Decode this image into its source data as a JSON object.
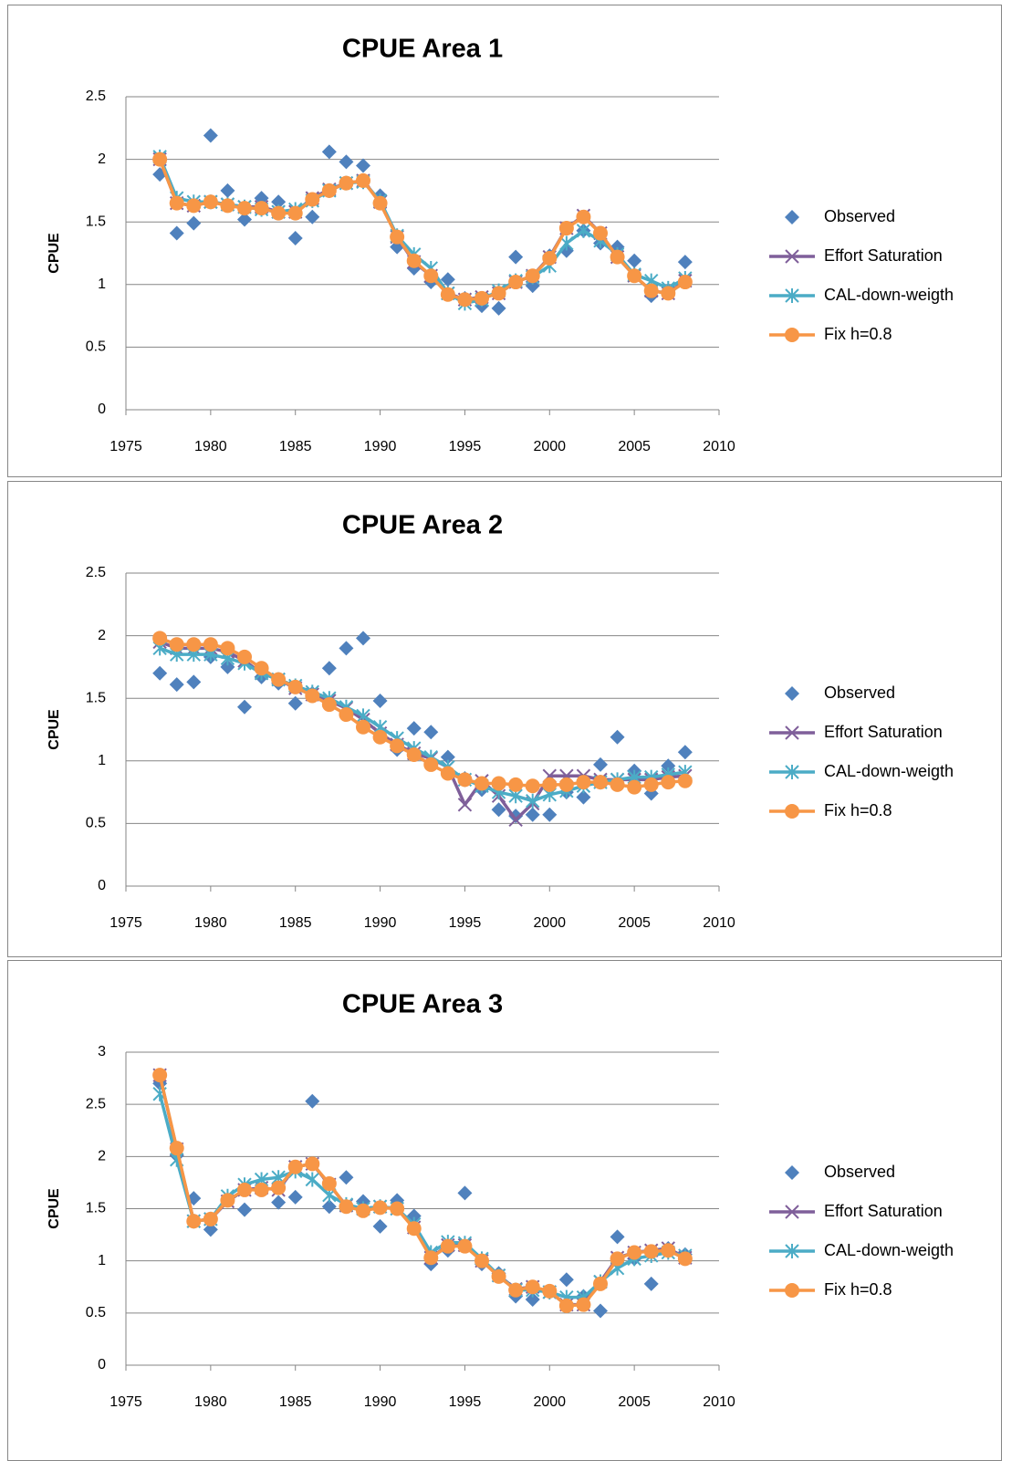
{
  "chart_data": [
    {
      "type": "line",
      "title": "CPUE Area 1",
      "y_label": "CPUE",
      "x": [
        1977,
        1978,
        1979,
        1980,
        1981,
        1982,
        1983,
        1984,
        1985,
        1986,
        1987,
        1988,
        1989,
        1990,
        1991,
        1992,
        1993,
        1994,
        1995,
        1996,
        1997,
        1998,
        1999,
        2000,
        2001,
        2002,
        2003,
        2004,
        2005,
        2006,
        2007,
        2008
      ],
      "xlim": [
        1975,
        2010
      ],
      "xticks": [
        1975,
        1980,
        1985,
        1990,
        1995,
        2000,
        2005,
        2010
      ],
      "ylim": [
        0,
        2.5
      ],
      "yticks": [
        0,
        0.5,
        1,
        1.5,
        2,
        2.5
      ],
      "grid": true,
      "legend": "right",
      "series": [
        {
          "name": "Observed",
          "color": "#4f81bd",
          "marker": "diamond",
          "line": false,
          "values": [
            1.88,
            1.41,
            1.49,
            2.19,
            1.75,
            1.52,
            1.69,
            1.66,
            1.37,
            1.54,
            2.06,
            1.98,
            1.95,
            1.71,
            1.3,
            1.13,
            1.02,
            1.04,
            0.89,
            0.83,
            0.81,
            1.22,
            0.99,
            1.23,
            1.27,
            1.43,
            1.33,
            1.3,
            1.19,
            0.91,
            0.95,
            1.18
          ]
        },
        {
          "name": "Effort Saturation",
          "color": "#7f5f9a",
          "marker": "x",
          "line": true,
          "values": [
            2.0,
            1.65,
            1.63,
            1.66,
            1.64,
            1.62,
            1.62,
            1.58,
            1.58,
            1.69,
            1.76,
            1.81,
            1.83,
            1.66,
            1.38,
            1.18,
            1.07,
            0.93,
            0.88,
            0.9,
            0.93,
            1.02,
            1.07,
            1.22,
            1.45,
            1.55,
            1.41,
            1.22,
            1.07,
            0.95,
            0.93,
            1.03
          ]
        },
        {
          "name": "CAL-down-weigth",
          "color": "#4bacc6",
          "marker": "asterisk",
          "line": true,
          "values": [
            2.02,
            1.69,
            1.66,
            1.66,
            1.64,
            1.62,
            1.6,
            1.58,
            1.6,
            1.67,
            1.75,
            1.81,
            1.82,
            1.67,
            1.39,
            1.24,
            1.13,
            0.93,
            0.85,
            0.88,
            0.95,
            1.03,
            1.06,
            1.15,
            1.33,
            1.43,
            1.35,
            1.24,
            1.08,
            1.03,
            0.97,
            1.05
          ]
        },
        {
          "name": "Fix h=0.8",
          "color": "#f79646",
          "marker": "circle",
          "line": true,
          "values": [
            2.0,
            1.65,
            1.63,
            1.66,
            1.63,
            1.61,
            1.61,
            1.57,
            1.57,
            1.68,
            1.75,
            1.81,
            1.83,
            1.65,
            1.38,
            1.19,
            1.07,
            0.92,
            0.88,
            0.89,
            0.93,
            1.02,
            1.07,
            1.21,
            1.45,
            1.54,
            1.41,
            1.22,
            1.07,
            0.95,
            0.93,
            1.02
          ]
        }
      ]
    },
    {
      "type": "line",
      "title": "CPUE Area 2",
      "y_label": "CPUE",
      "x": [
        1977,
        1978,
        1979,
        1980,
        1981,
        1982,
        1983,
        1984,
        1985,
        1986,
        1987,
        1988,
        1989,
        1990,
        1991,
        1992,
        1993,
        1994,
        1995,
        1996,
        1997,
        1998,
        1999,
        2000,
        2001,
        2002,
        2003,
        2004,
        2005,
        2006,
        2007,
        2008
      ],
      "xlim": [
        1975,
        2010
      ],
      "xticks": [
        1975,
        1980,
        1985,
        1990,
        1995,
        2000,
        2005,
        2010
      ],
      "ylim": [
        0,
        2.5
      ],
      "yticks": [
        0,
        0.5,
        1,
        1.5,
        2,
        2.5
      ],
      "grid": true,
      "legend": "right",
      "series": [
        {
          "name": "Observed",
          "color": "#4f81bd",
          "marker": "diamond",
          "line": false,
          "values": [
            1.7,
            1.61,
            1.63,
            1.83,
            1.75,
            1.43,
            1.67,
            1.62,
            1.46,
            1.54,
            1.74,
            1.9,
            1.98,
            1.48,
            1.09,
            1.26,
            1.23,
            1.03,
            0.86,
            0.77,
            0.61,
            0.56,
            0.57,
            0.57,
            0.75,
            0.71,
            0.97,
            1.19,
            0.92,
            0.74,
            0.96,
            1.07
          ]
        },
        {
          "name": "Effort Saturation",
          "color": "#7f5f9a",
          "marker": "x",
          "line": true,
          "values": [
            1.95,
            1.9,
            1.9,
            1.9,
            1.87,
            1.8,
            1.7,
            1.65,
            1.58,
            1.53,
            1.48,
            1.42,
            1.33,
            1.22,
            1.13,
            1.06,
            1.02,
            0.95,
            0.65,
            0.84,
            0.72,
            0.53,
            0.66,
            0.88,
            0.88,
            0.88,
            0.85,
            0.85,
            0.85,
            0.85,
            0.87,
            0.88
          ]
        },
        {
          "name": "CAL-down-weigth",
          "color": "#4bacc6",
          "marker": "asterisk",
          "line": true,
          "values": [
            1.9,
            1.85,
            1.85,
            1.85,
            1.82,
            1.78,
            1.7,
            1.65,
            1.6,
            1.55,
            1.5,
            1.43,
            1.36,
            1.27,
            1.18,
            1.1,
            1.03,
            0.95,
            0.85,
            0.8,
            0.75,
            0.72,
            0.68,
            0.73,
            0.76,
            0.8,
            0.83,
            0.85,
            0.87,
            0.87,
            0.89,
            0.91
          ]
        },
        {
          "name": "Fix h=0.8",
          "color": "#f79646",
          "marker": "circle",
          "line": true,
          "values": [
            1.98,
            1.93,
            1.93,
            1.93,
            1.9,
            1.83,
            1.74,
            1.65,
            1.59,
            1.52,
            1.45,
            1.37,
            1.27,
            1.19,
            1.12,
            1.05,
            0.97,
            0.9,
            0.85,
            0.82,
            0.82,
            0.81,
            0.8,
            0.81,
            0.81,
            0.83,
            0.83,
            0.81,
            0.79,
            0.81,
            0.83,
            0.84
          ]
        }
      ]
    },
    {
      "type": "line",
      "title": "CPUE Area 3",
      "y_label": "CPUE",
      "x": [
        1977,
        1978,
        1979,
        1980,
        1981,
        1982,
        1983,
        1984,
        1985,
        1986,
        1987,
        1988,
        1989,
        1990,
        1991,
        1992,
        1993,
        1994,
        1995,
        1996,
        1997,
        1998,
        1999,
        2000,
        2001,
        2002,
        2003,
        2004,
        2005,
        2006,
        2007,
        2008
      ],
      "xlim": [
        1975,
        2010
      ],
      "xticks": [
        1975,
        1980,
        1985,
        1990,
        1995,
        2000,
        2005,
        2010
      ],
      "ylim": [
        0,
        3
      ],
      "yticks": [
        0,
        0.5,
        1,
        1.5,
        2,
        2.5,
        3
      ],
      "grid": true,
      "legend": "right",
      "series": [
        {
          "name": "Observed",
          "color": "#4f81bd",
          "marker": "diamond",
          "line": false,
          "values": [
            2.7,
            2.01,
            1.6,
            1.3,
            1.59,
            1.49,
            1.68,
            1.56,
            1.61,
            2.53,
            1.52,
            1.8,
            1.57,
            1.33,
            1.58,
            1.43,
            0.97,
            1.1,
            1.65,
            0.97,
            0.88,
            0.66,
            0.63,
            0.71,
            0.82,
            0.66,
            0.52,
            1.23,
            1.02,
            0.78,
            1.12,
            1.06
          ]
        },
        {
          "name": "Effort Saturation",
          "color": "#7f5f9a",
          "marker": "x",
          "line": true,
          "values": [
            2.78,
            2.07,
            1.38,
            1.4,
            1.57,
            1.68,
            1.7,
            1.68,
            1.9,
            1.93,
            1.73,
            1.53,
            1.5,
            1.52,
            1.5,
            1.32,
            1.03,
            1.15,
            1.15,
            1.0,
            0.86,
            0.73,
            0.75,
            0.7,
            0.58,
            0.58,
            0.8,
            1.03,
            1.08,
            1.1,
            1.12,
            1.03
          ]
        },
        {
          "name": "CAL-down-weigth",
          "color": "#4bacc6",
          "marker": "asterisk",
          "line": true,
          "values": [
            2.6,
            1.97,
            1.38,
            1.4,
            1.62,
            1.73,
            1.78,
            1.8,
            1.86,
            1.78,
            1.63,
            1.54,
            1.5,
            1.52,
            1.5,
            1.35,
            1.08,
            1.18,
            1.17,
            1.02,
            0.86,
            0.72,
            0.72,
            0.7,
            0.65,
            0.65,
            0.8,
            0.93,
            1.02,
            1.05,
            1.08,
            1.05
          ]
        },
        {
          "name": "Fix h=0.8",
          "color": "#f79646",
          "marker": "circle",
          "line": true,
          "values": [
            2.78,
            2.08,
            1.38,
            1.4,
            1.58,
            1.68,
            1.68,
            1.7,
            1.9,
            1.93,
            1.74,
            1.52,
            1.48,
            1.51,
            1.5,
            1.31,
            1.03,
            1.14,
            1.14,
            1.0,
            0.85,
            0.72,
            0.75,
            0.71,
            0.57,
            0.58,
            0.78,
            1.02,
            1.08,
            1.09,
            1.1,
            1.02
          ]
        }
      ]
    }
  ]
}
